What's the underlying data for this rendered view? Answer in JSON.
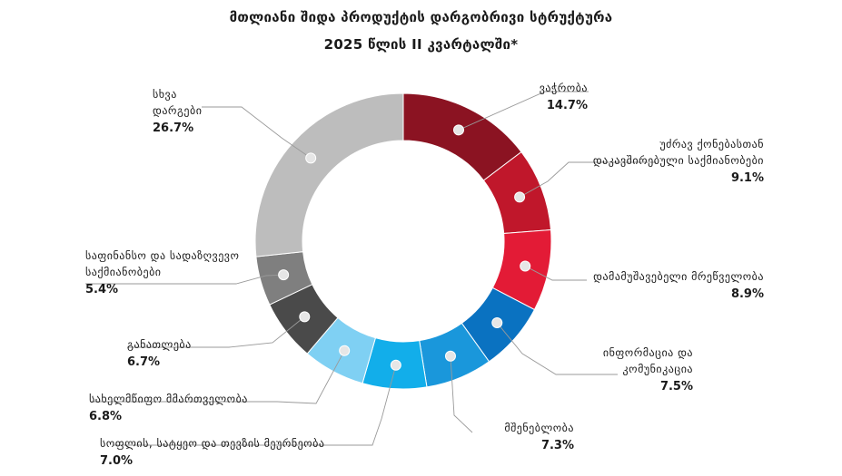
{
  "title_line1": "მთლიანი შიდა პროდუქტის დარგობრივი სტრუქტურა",
  "title_line2": "2025 წლის II კვარტალში*",
  "chart_data": {
    "type": "pie",
    "style": "donut",
    "title": "მთლიანი შიდა პროდუქტის დარგობრივი სტრუქტურა 2025 წლის II კვარტალში*",
    "slices": [
      {
        "label": "ვაჭრობა",
        "value": 14.7,
        "value_text": "14.7%",
        "color": "#8b1322"
      },
      {
        "label": "უძრავ ქონებასთან დაკავშირებული საქმიანობები",
        "value": 9.1,
        "value_text": "9.1%",
        "color": "#c0172b"
      },
      {
        "label": "დამამუშავებელი მრეწველობა",
        "value": 8.9,
        "value_text": "8.9%",
        "color": "#e31b36"
      },
      {
        "label": "ინფორმაცია და კომუნიკაცია",
        "value": 7.5,
        "value_text": "7.5%",
        "color": "#0a72c1"
      },
      {
        "label": "მშენებლობა",
        "value": 7.3,
        "value_text": "7.3%",
        "color": "#1a97db"
      },
      {
        "label": "სოფლის, სატყეო და თევზის მეურნეობა",
        "value": 7.0,
        "value_text": "7.0%",
        "color": "#12aeea"
      },
      {
        "label": "სახელმწიფო მმართველობა",
        "value": 6.8,
        "value_text": "6.8%",
        "color": "#7fd0f3"
      },
      {
        "label": "განათლება",
        "value": 6.7,
        "value_text": "6.7%",
        "color": "#4a4a4a"
      },
      {
        "label": "საფინანსო და სადაზღვევო საქმიანობები",
        "value": 5.4,
        "value_text": "5.4%",
        "color": "#7f7f7f"
      },
      {
        "label": "სხვა დარგები",
        "value": 26.7,
        "value_text": "26.7%",
        "color": "#bdbdbd"
      }
    ]
  },
  "labels": [
    {
      "lines": [
        "ვაჭრობა"
      ],
      "pct": "14.7%"
    },
    {
      "lines": [
        "უძრავ ქონებასთან",
        "დაკავშირებული საქმიანობები"
      ],
      "pct": "9.1%"
    },
    {
      "lines": [
        "დამამუშავებელი მრეწველობა"
      ],
      "pct": "8.9%"
    },
    {
      "lines": [
        "ინფორმაცია და",
        "კომუნიკაცია"
      ],
      "pct": "7.5%"
    },
    {
      "lines": [
        "მშენებლობა"
      ],
      "pct": "7.3%"
    },
    {
      "lines": [
        "სოფლის, სატყეო და თევზის მეურნეობა"
      ],
      "pct": "7.0%"
    },
    {
      "lines": [
        "სახელმწიფო მმართველობა"
      ],
      "pct": "6.8%"
    },
    {
      "lines": [
        "განათლება"
      ],
      "pct": "6.7%"
    },
    {
      "lines": [
        "საფინანსო და სადაზღვევო",
        "საქმიანობები"
      ],
      "pct": "5.4%"
    },
    {
      "lines": [
        "სხვა",
        "დარგები"
      ],
      "pct": "26.7%"
    }
  ]
}
